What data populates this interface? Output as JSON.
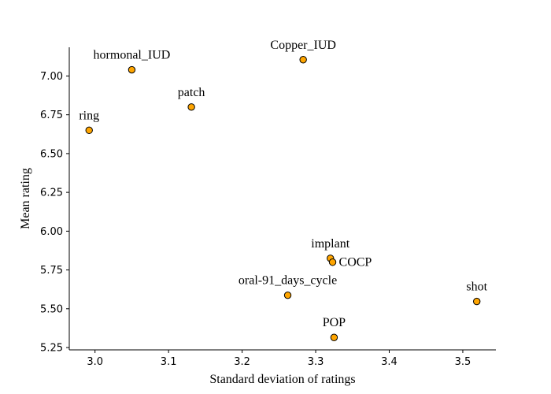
{
  "chart_data": {
    "type": "scatter",
    "title": "",
    "xlabel": "Standard deviation of ratings",
    "ylabel": "Mean rating",
    "xlim": [
      2.965,
      3.545
    ],
    "ylim": [
      5.235,
      7.185
    ],
    "xticks": [
      3.0,
      3.1,
      3.2,
      3.3,
      3.4,
      3.5
    ],
    "xtick_labels": [
      "3.0",
      "3.1",
      "3.2",
      "3.3",
      "3.4",
      "3.5"
    ],
    "yticks": [
      5.25,
      5.5,
      5.75,
      6.0,
      6.25,
      6.5,
      6.75,
      7.0
    ],
    "ytick_labels": [
      "5.25",
      "5.50",
      "5.75",
      "6.00",
      "6.25",
      "6.50",
      "6.75",
      "7.00"
    ],
    "marker_color": "#FFA500",
    "marker_edge_color": "#000000",
    "grid": false,
    "points": [
      {
        "label": "Copper_IUD",
        "x": 3.283,
        "y": 7.105,
        "label_pos": "above"
      },
      {
        "label": "hormonal_IUD",
        "x": 3.05,
        "y": 7.04,
        "label_pos": "above"
      },
      {
        "label": "patch",
        "x": 3.131,
        "y": 6.8,
        "label_pos": "above"
      },
      {
        "label": "ring",
        "x": 2.992,
        "y": 6.65,
        "label_pos": "above"
      },
      {
        "label": "implant",
        "x": 3.32,
        "y": 5.825,
        "label_pos": "above"
      },
      {
        "label": "COCP",
        "x": 3.323,
        "y": 5.8,
        "label_pos": "right"
      },
      {
        "label": "oral-91_days_cycle",
        "x": 3.262,
        "y": 5.587,
        "label_pos": "above"
      },
      {
        "label": "shot",
        "x": 3.519,
        "y": 5.547,
        "label_pos": "above"
      },
      {
        "label": "POP",
        "x": 3.325,
        "y": 5.315,
        "label_pos": "above"
      }
    ]
  }
}
